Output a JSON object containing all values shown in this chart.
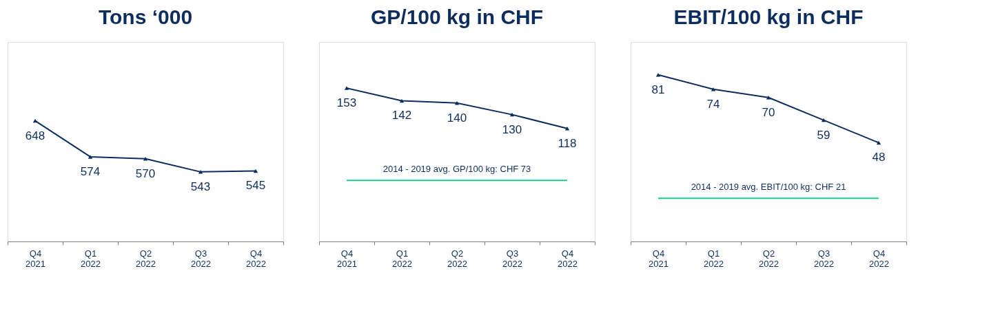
{
  "chart_data": [
    {
      "type": "line",
      "title": "Tons ‘000",
      "categories": [
        "Q4 2021",
        "Q1 2022",
        "Q2 2022",
        "Q3 2022",
        "Q4 2022"
      ],
      "series": [
        {
          "color": "#0d2d5e",
          "values": [
            648,
            574,
            570,
            543,
            545
          ]
        }
      ],
      "ylim": [
        400,
        810
      ],
      "data_labels": true,
      "marker": "triangle",
      "tick_labels": "x",
      "grid": false
    },
    {
      "type": "line",
      "title": "GP/100 kg in CHF",
      "categories": [
        "Q4 2021",
        "Q1 2022",
        "Q2 2022",
        "Q3 2022",
        "Q4 2022"
      ],
      "series": [
        {
          "color": "#0d2d5e",
          "values": [
            153,
            142,
            140,
            130,
            118
          ]
        }
      ],
      "ylim": [
        20,
        193
      ],
      "data_labels": true,
      "marker": "triangle",
      "tick_labels": "x",
      "grid": false,
      "ref_lines": [
        {
          "axis": "y",
          "value": 73,
          "label": "2014 - 2019 avg. GP/100 kg: CHF 73",
          "color": "#1ec99a"
        }
      ]
    },
    {
      "type": "line",
      "title": "EBIT/100 kg in CHF",
      "categories": [
        "Q4 2021",
        "Q1 2022",
        "Q2 2022",
        "Q3 2022",
        "Q4 2022"
      ],
      "series": [
        {
          "color": "#0d2d5e",
          "values": [
            81,
            74,
            70,
            59,
            48
          ]
        }
      ],
      "ylim": [
        0,
        97
      ],
      "data_labels": true,
      "marker": "triangle",
      "tick_labels": "x",
      "grid": false,
      "ref_lines": [
        {
          "axis": "y",
          "value": 21,
          "label": "2014 - 2019 avg. EBIT/100 kg: CHF 21",
          "color": "#1ec99a"
        }
      ]
    }
  ]
}
